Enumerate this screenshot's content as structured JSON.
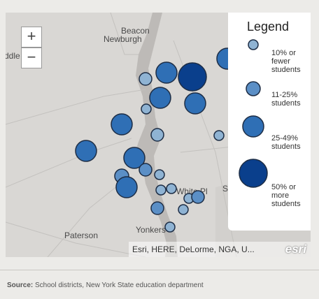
{
  "map": {
    "places": [
      "Beacon",
      "Newburgh",
      "ddle",
      "Paterson",
      "Yonkers",
      "White Pl",
      "S"
    ],
    "zoom": [
      "+",
      "−"
    ],
    "attribution": "Esri, HERE, DeLorme, NGA, U...",
    "logo": "esri"
  },
  "legend": {
    "title": "Legend",
    "items": [
      "10% or fewer students",
      "11-25% students",
      "25-49% students",
      "50% or more students"
    ]
  },
  "source": {
    "label": "Source:",
    "text": "School districts, New York State education department"
  }
}
